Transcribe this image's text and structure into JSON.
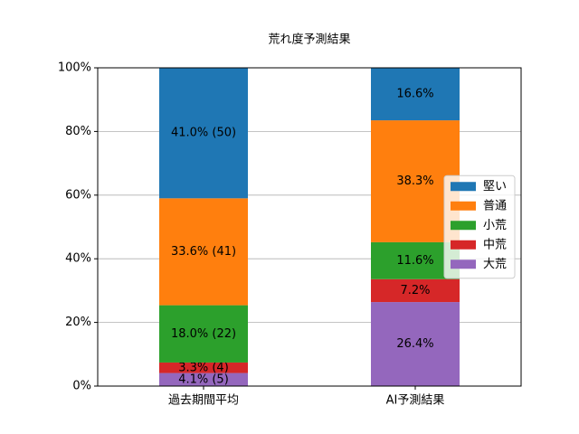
{
  "chart_data": {
    "type": "stacked_bar",
    "title": "荒れ度予測結果",
    "categories": [
      "過去期間平均",
      "AI予測結果"
    ],
    "series": [
      {
        "name": "大荒",
        "color": "#9467bd",
        "values": [
          4.1,
          26.4
        ],
        "value_labels": [
          "4.1% (5)",
          "26.4%"
        ]
      },
      {
        "name": "中荒",
        "color": "#d62728",
        "values": [
          3.3,
          7.2
        ],
        "value_labels": [
          "3.3% (4)",
          "7.2%"
        ]
      },
      {
        "name": "小荒",
        "color": "#2ca02c",
        "values": [
          18.0,
          11.6
        ],
        "value_labels": [
          "18.0% (22)",
          "11.6%"
        ]
      },
      {
        "name": "普通",
        "color": "#ff7f0e",
        "values": [
          33.6,
          38.3
        ],
        "value_labels": [
          "33.6% (41)",
          "38.3%"
        ]
      },
      {
        "name": "堅い",
        "color": "#1f77b4",
        "values": [
          41.0,
          16.6
        ],
        "value_labels": [
          "41.0% (50)",
          "16.6%"
        ]
      }
    ],
    "ylim": [
      0,
      100
    ],
    "yticks": [
      {
        "value": 0,
        "label": "0%"
      },
      {
        "value": 20,
        "label": "20%"
      },
      {
        "value": 40,
        "label": "40%"
      },
      {
        "value": 60,
        "label": "60%"
      },
      {
        "value": 80,
        "label": "80%"
      },
      {
        "value": 100,
        "label": "100%"
      }
    ],
    "grid": true,
    "legend": "center right"
  }
}
